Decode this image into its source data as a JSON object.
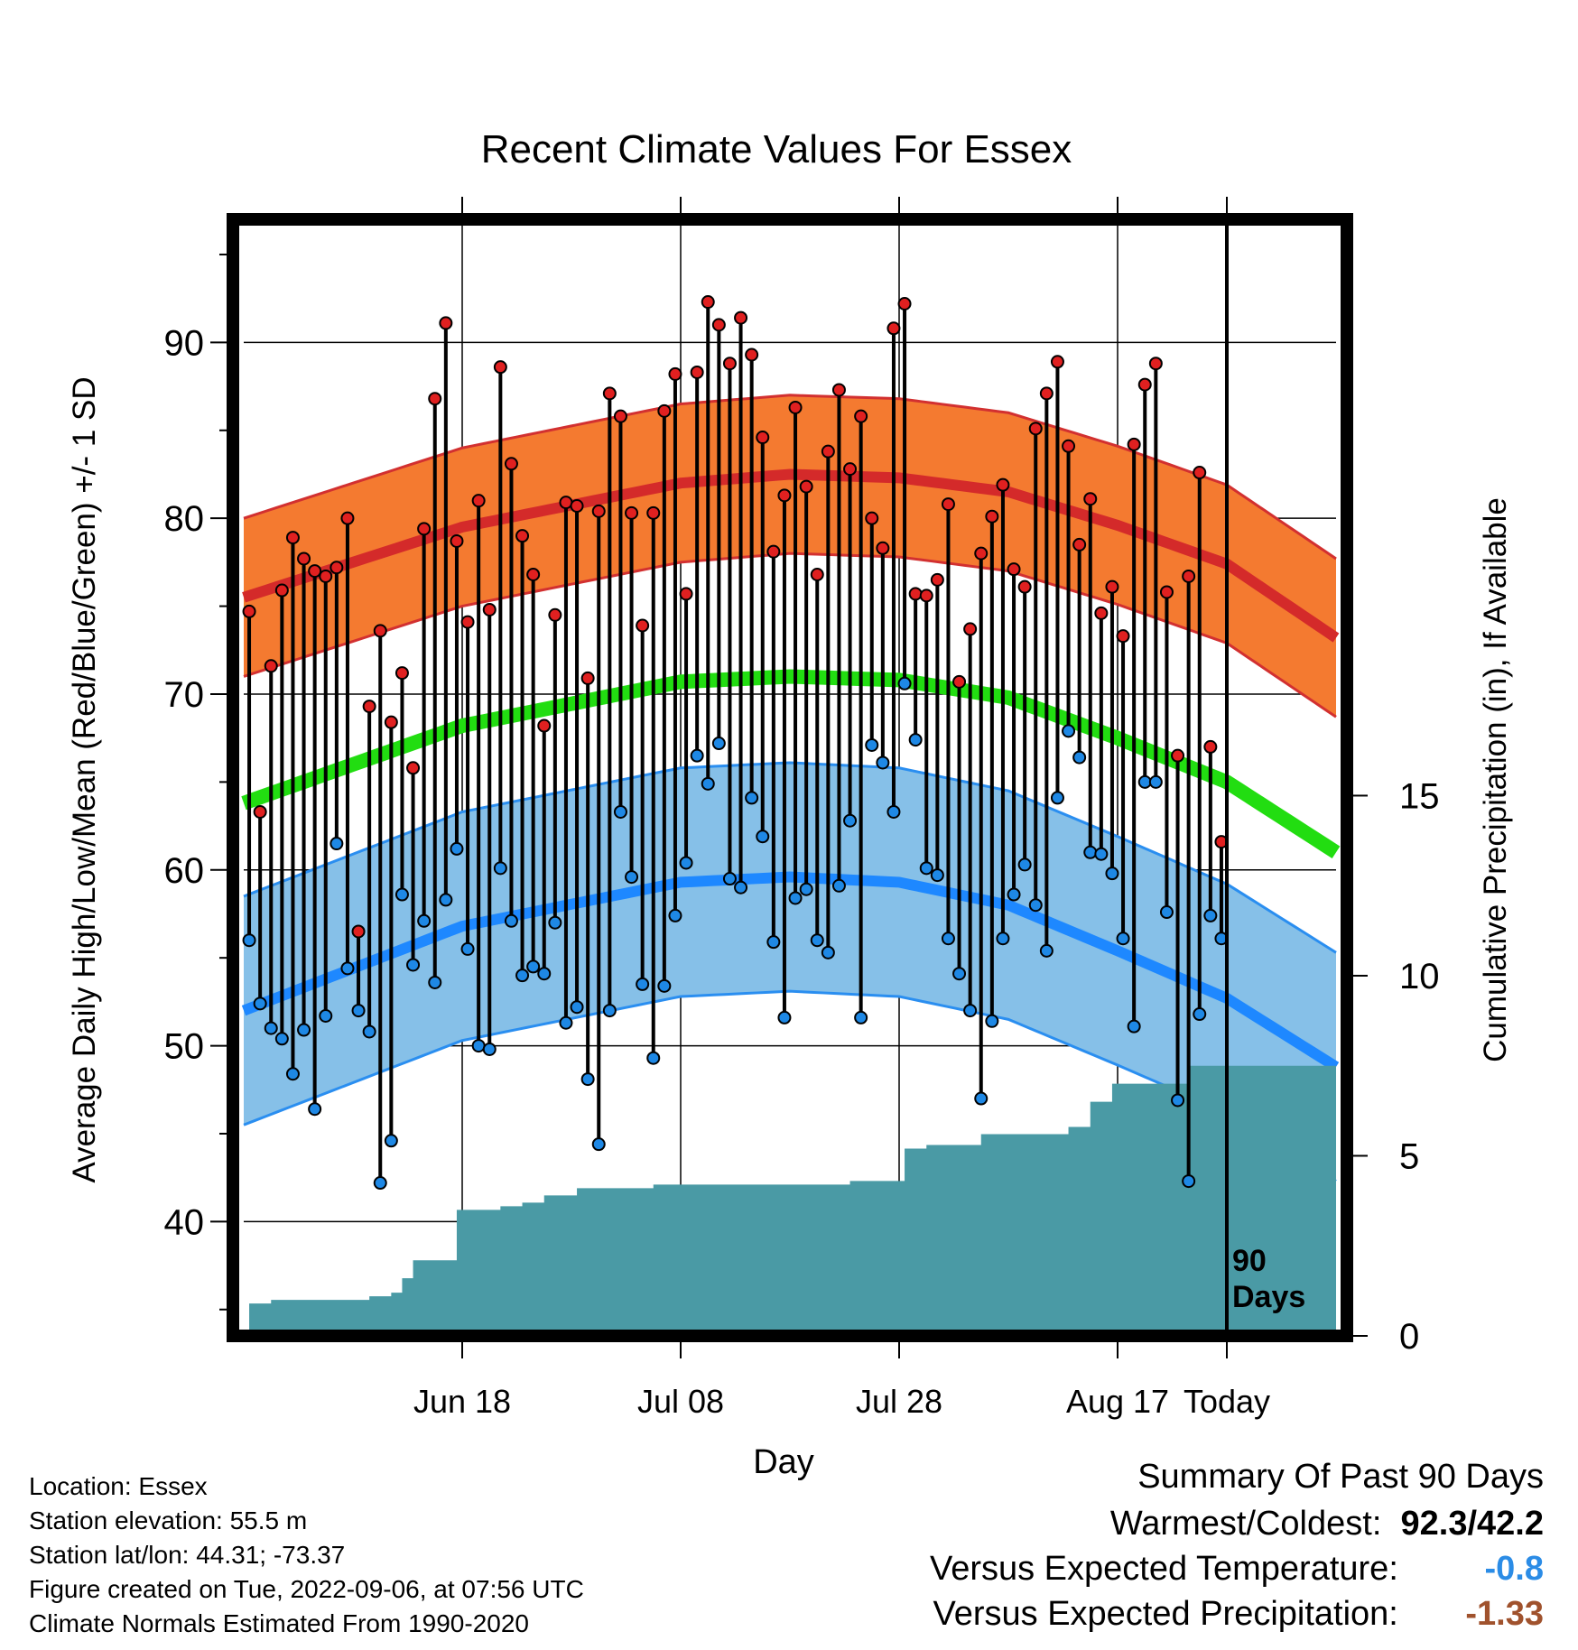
{
  "chart_data": {
    "type": "line",
    "title": "Recent Climate Values For Essex",
    "xlabel": "Day",
    "ylabel": "Average Daily High/Low/Mean (Red/Blue/Green) +/- 1 SD",
    "ylabel_right": "Cumulative Precipitation (in), If Available",
    "x_tick_labels": [
      "Jun 18",
      "Jul 08",
      "Jul 28",
      "Aug 17",
      "Today"
    ],
    "y_tick_labels": [
      "40",
      "50",
      "60",
      "70",
      "80",
      "90"
    ],
    "y_right_tick_labels": [
      "0",
      "5",
      "10",
      "15"
    ],
    "ylim": [
      33.5,
      97
    ],
    "ylim_right": [
      0,
      31
    ],
    "xlim_days_before_today": [
      -90,
      10
    ],
    "normals": {
      "high_mean": [
        [
          -90,
          75.5
        ],
        [
          -70,
          79.5
        ],
        [
          -50,
          82.0
        ],
        [
          -40,
          82.5
        ],
        [
          -30,
          82.3
        ],
        [
          -20,
          81.5
        ],
        [
          -10,
          79.6
        ],
        [
          0,
          77.4
        ],
        [
          10,
          73.2
        ]
      ],
      "high_sd": 4.5,
      "low_mean": [
        [
          -90,
          52.0
        ],
        [
          -70,
          56.8
        ],
        [
          -50,
          59.3
        ],
        [
          -40,
          59.6
        ],
        [
          -30,
          59.3
        ],
        [
          -20,
          58.0
        ],
        [
          -10,
          55.4
        ],
        [
          0,
          52.7
        ],
        [
          10,
          48.8
        ]
      ],
      "low_sd": 6.5,
      "mean_mean": [
        [
          -90,
          63.8
        ],
        [
          -70,
          68.2
        ],
        [
          -50,
          70.7
        ],
        [
          -40,
          71.0
        ],
        [
          -30,
          70.8
        ],
        [
          -20,
          69.8
        ],
        [
          -10,
          67.5
        ],
        [
          0,
          65.0
        ],
        [
          10,
          61.0
        ]
      ]
    },
    "series": [
      {
        "name": "High",
        "color": "#e02020",
        "values": [
          74.7,
          63.3,
          71.6,
          75.9,
          78.9,
          77.7,
          77.0,
          76.7,
          77.2,
          80.0,
          56.5,
          69.3,
          73.6,
          68.4,
          71.2,
          65.8,
          79.4,
          86.8,
          91.1,
          78.7,
          74.1,
          81.0,
          74.8,
          88.6,
          83.1,
          79.0,
          76.8,
          68.2,
          74.5,
          80.9,
          80.7,
          70.9,
          80.4,
          87.1,
          85.8,
          80.3,
          73.9,
          80.3,
          86.1,
          88.2,
          75.7,
          88.3,
          92.3,
          91.0,
          88.8,
          91.4,
          89.3,
          84.6,
          78.1,
          81.3,
          86.3,
          81.8,
          76.8,
          83.8,
          87.3,
          82.8,
          85.8,
          80.0,
          78.3,
          90.8,
          92.2,
          75.7,
          75.6,
          76.5,
          80.8,
          70.7,
          73.7,
          78.0,
          80.1,
          81.9,
          77.1,
          76.1,
          85.1,
          87.1,
          88.9,
          84.1,
          78.5,
          81.1,
          74.6,
          76.1,
          73.3,
          84.2,
          87.6,
          88.8,
          75.8,
          66.5,
          76.7,
          82.6,
          67.0,
          61.6
        ]
      },
      {
        "name": "Low",
        "color": "#1e88e5",
        "values": [
          56.0,
          52.4,
          51.0,
          50.4,
          48.4,
          50.9,
          46.4,
          51.7,
          61.5,
          54.4,
          52.0,
          50.8,
          42.2,
          44.6,
          58.6,
          54.6,
          57.1,
          53.6,
          58.3,
          61.2,
          55.5,
          50.0,
          49.8,
          60.1,
          57.1,
          54.0,
          54.5,
          54.1,
          57.0,
          51.3,
          52.2,
          48.1,
          44.4,
          52.0,
          63.3,
          59.6,
          53.5,
          49.3,
          53.4,
          57.4,
          60.4,
          66.5,
          64.9,
          67.2,
          59.5,
          59.0,
          64.1,
          61.9,
          55.9,
          51.6,
          58.4,
          58.9,
          56.0,
          55.3,
          59.1,
          62.8,
          51.6,
          67.1,
          66.1,
          63.3,
          70.6,
          67.4,
          60.1,
          59.7,
          56.1,
          54.1,
          52.0,
          47.0,
          51.4,
          56.1,
          58.6,
          60.3,
          58.0,
          55.4,
          64.1,
          67.9,
          66.4,
          61.0,
          60.9,
          59.8,
          56.1,
          51.1,
          65.0,
          65.0,
          57.6,
          46.9,
          42.3,
          51.8,
          57.4,
          56.1
        ]
      },
      {
        "name": "Cumulative Precipitation",
        "color": "#4a9aa5",
        "values": [
          0.9,
          0.9,
          1.0,
          1.0,
          1.0,
          1.0,
          1.0,
          1.0,
          1.0,
          1.0,
          1.0,
          1.1,
          1.1,
          1.2,
          1.6,
          2.1,
          2.1,
          2.1,
          2.1,
          3.5,
          3.5,
          3.5,
          3.5,
          3.6,
          3.6,
          3.7,
          3.7,
          3.9,
          3.9,
          3.9,
          4.1,
          4.1,
          4.1,
          4.1,
          4.1,
          4.1,
          4.1,
          4.2,
          4.2,
          4.2,
          4.2,
          4.2,
          4.2,
          4.2,
          4.2,
          4.2,
          4.2,
          4.2,
          4.2,
          4.2,
          4.2,
          4.2,
          4.2,
          4.2,
          4.2,
          4.3,
          4.3,
          4.3,
          4.3,
          4.3,
          5.2,
          5.2,
          5.3,
          5.3,
          5.3,
          5.3,
          5.3,
          5.6,
          5.6,
          5.6,
          5.6,
          5.6,
          5.6,
          5.6,
          5.6,
          5.8,
          5.8,
          6.5,
          6.5,
          7.0,
          7.0,
          7.0,
          7.0,
          7.0,
          7.0,
          7.0,
          7.5,
          7.5,
          7.5,
          7.5
        ]
      }
    ]
  },
  "markers": {
    "today_label": "90\nDays"
  },
  "footer": {
    "location": "Location: Essex",
    "elevation": "Station elevation: 55.5 m",
    "latlon": "Station lat/lon: 44.31; -73.37",
    "created": "Figure created on Tue, 2022-09-06, at 07:56 UTC",
    "normals": "Climate Normals Estimated From 1990-2020"
  },
  "summary": {
    "title": "Summary Of Past 90 Days",
    "warm_cold_label": "Warmest/Coldest:",
    "warm_cold_value": "92.3/42.2",
    "temp_label": "Versus Expected Temperature:",
    "temp_value": "-0.8",
    "temp_color": "#2b8ce6",
    "precip_label": "Versus Expected Precipitation:",
    "precip_value": "-1.33",
    "precip_color": "#a0522d"
  },
  "colors": {
    "high_band": "#f47a30",
    "high_line": "#d42a2a",
    "low_band": "#86c0e8",
    "low_line": "#1e88ff",
    "mean_line": "#22dd11",
    "precip_fill": "#4a9aa5",
    "high_dot": "#e02020",
    "low_dot": "#1e88e5"
  }
}
